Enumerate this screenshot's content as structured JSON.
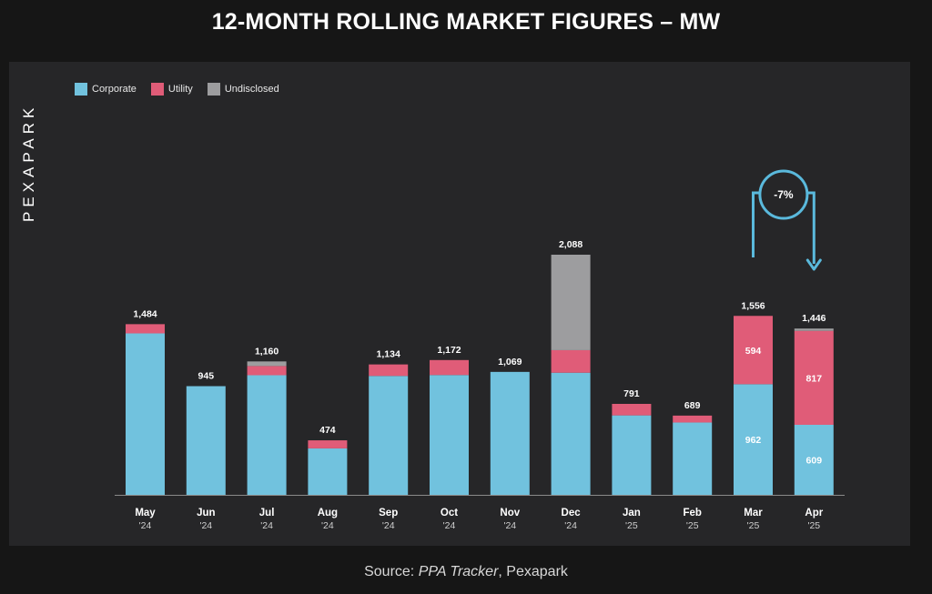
{
  "title": "12-MONTH ROLLING MARKET FIGURES – MW",
  "brand": "PEXAPARK",
  "source": {
    "prefix": "Source: ",
    "emphasis": "PPA Tracker",
    "suffix": ", Pexapark"
  },
  "colors": {
    "Corporate": "#71c2de",
    "Utility": "#e05c78",
    "Undisclosed": "#9d9d9f",
    "background": "#262628",
    "annotation": "#5ab9dc"
  },
  "chart_data": {
    "type": "bar",
    "stacked": true,
    "title": "12-MONTH ROLLING MARKET FIGURES – MW",
    "categories": [
      {
        "month": "May",
        "year": "'24"
      },
      {
        "month": "Jun",
        "year": "'24"
      },
      {
        "month": "Jul",
        "year": "'24"
      },
      {
        "month": "Aug",
        "year": "'24"
      },
      {
        "month": "Sep",
        "year": "'24"
      },
      {
        "month": "Oct",
        "year": "'24"
      },
      {
        "month": "Nov",
        "year": "'24"
      },
      {
        "month": "Dec",
        "year": "'24"
      },
      {
        "month": "Jan",
        "year": "'25"
      },
      {
        "month": "Feb",
        "year": "'25"
      },
      {
        "month": "Mar",
        "year": "'25"
      },
      {
        "month": "Apr",
        "year": "'25"
      }
    ],
    "series": [
      {
        "name": "Corporate",
        "values": [
          1404,
          945,
          1040,
          404,
          1034,
          1042,
          1069,
          1062,
          691,
          629,
          962,
          609
        ]
      },
      {
        "name": "Utility",
        "values": [
          80,
          0,
          80,
          70,
          100,
          130,
          0,
          196,
          100,
          60,
          594,
          817
        ]
      },
      {
        "name": "Undisclosed",
        "values": [
          0,
          0,
          40,
          0,
          0,
          0,
          0,
          830,
          0,
          0,
          0,
          20
        ]
      }
    ],
    "totals": [
      "1,484",
      "945",
      "1,160",
      "474",
      "1,134",
      "1,172",
      "1,069",
      "2,088",
      "791",
      "689",
      "1,556",
      "1,446"
    ],
    "segment_labels": [
      {
        "index": 10,
        "series": "Utility",
        "label": "594"
      },
      {
        "index": 10,
        "series": "Corporate",
        "label": "962"
      },
      {
        "index": 11,
        "series": "Utility",
        "label": "817"
      },
      {
        "index": 11,
        "series": "Corporate",
        "label": "609"
      }
    ],
    "annotation": {
      "text": "-7%",
      "from_index": 10,
      "to_index": 11
    },
    "ylim": [
      0,
      2088
    ],
    "grid": false,
    "legend_position": "top-left",
    "xlabel": "",
    "ylabel": ""
  }
}
